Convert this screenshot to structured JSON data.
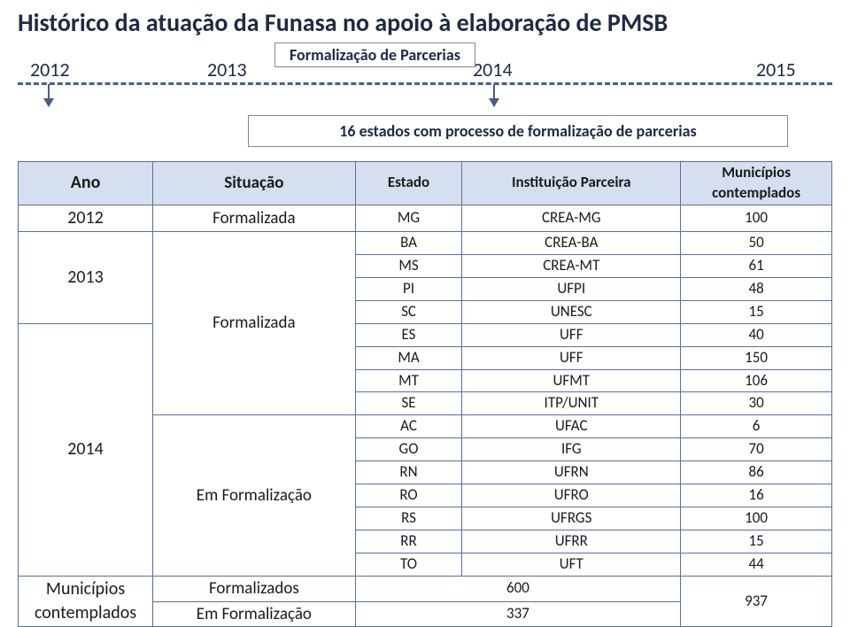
{
  "title": "Histórico da atuação da Funasa no apoio à elaboração de PMSB",
  "parcerias_label": "Formalização de Parcerias",
  "timeline": {
    "y2012": "2012",
    "y2013": "2013",
    "y2014": "2014",
    "y2015": "2015"
  },
  "estados_box": "16 estados com processo de formalização de parcerias",
  "headers": {
    "ano": "Ano",
    "situacao": "Situação",
    "estado": "Estado",
    "inst": "Instituição Parceira",
    "mun1": "Municípios",
    "mun2": "contemplados"
  },
  "rows": {
    "r2012": {
      "ano": "2012",
      "sit": "Formalizada",
      "est": "MG",
      "inst": "CREA-MG",
      "mun": "100"
    },
    "r2013": {
      "ano": "2013",
      "ba": {
        "est": "BA",
        "inst": "CREA-BA",
        "mun": "50"
      },
      "ms": {
        "est": "MS",
        "inst": "CREA-MT",
        "mun": "61"
      },
      "pi": {
        "est": "PI",
        "inst": "UFPI",
        "mun": "48"
      },
      "sc": {
        "est": "SC",
        "inst": "UNESC",
        "mun": "15"
      }
    },
    "formalizada_label": "Formalizada",
    "r2014": {
      "ano": "2014",
      "es": {
        "est": "ES",
        "inst": "UFF",
        "mun": "40"
      },
      "ma": {
        "est": "MA",
        "inst": "UFF",
        "mun": "150"
      },
      "mt": {
        "est": "MT",
        "inst": "UFMT",
        "mun": "106"
      },
      "se": {
        "est": "SE",
        "inst": "ITP/UNIT",
        "mun": "30"
      },
      "ac": {
        "est": "AC",
        "inst": "UFAC",
        "mun": "6"
      },
      "go": {
        "est": "GO",
        "inst": "IFG",
        "mun": "70"
      },
      "rn": {
        "est": "RN",
        "inst": "UFRN",
        "mun": "86"
      },
      "ro": {
        "est": "RO",
        "inst": "UFRO",
        "mun": "16"
      },
      "rs": {
        "est": "RS",
        "inst": "UFRGS",
        "mun": "100"
      },
      "rr": {
        "est": "RR",
        "inst": "UFRR",
        "mun": "15"
      },
      "to": {
        "est": "TO",
        "inst": "UFT",
        "mun": "44"
      }
    },
    "em_formalizacao_label": "Em Formalização"
  },
  "summary": {
    "label1": "Municípios",
    "label2": "contemplados",
    "formalizados_lbl": "Formalizados",
    "formalizados_val": "600",
    "emform_lbl": "Em Formalização",
    "emform_val": "337",
    "total": "937"
  },
  "colors": {
    "header_bg": "#d6dff0",
    "border": "#5a6fa0",
    "text_dark": "#1f2a44",
    "dashed": "#4a5d85"
  }
}
